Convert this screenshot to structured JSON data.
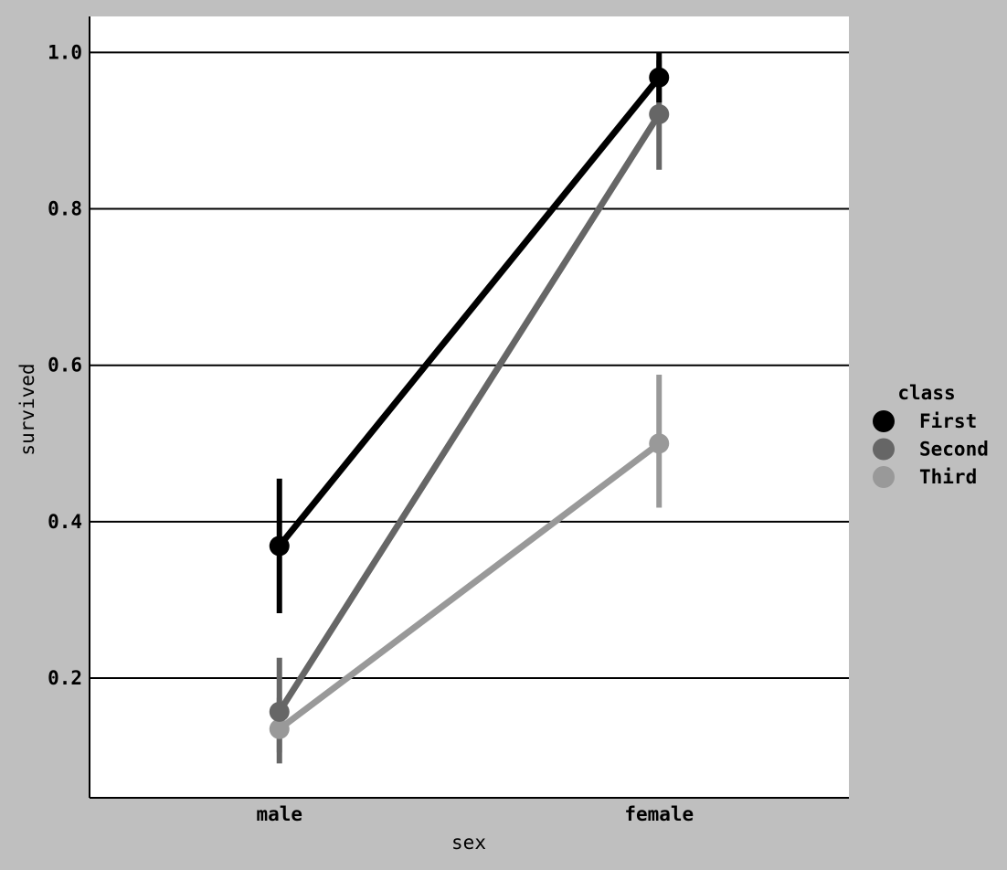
{
  "chart_data": {
    "type": "point",
    "categories": [
      "male",
      "female"
    ],
    "xlabel": "sex",
    "ylabel": "survived",
    "ylim": [
      0.047,
      1.046
    ],
    "yticks": [
      "0.2",
      "0.4",
      "0.6",
      "0.8",
      "1.0"
    ],
    "grid": "horizontal",
    "legend": {
      "title": "class",
      "placement": "right"
    },
    "series": [
      {
        "name": "First",
        "color": "#000000",
        "values": [
          0.369,
          0.968
        ],
        "ci": [
          [
            0.283,
            0.455
          ],
          [
            1.0,
            0.936
          ]
        ]
      },
      {
        "name": "Second",
        "color": "#666666",
        "values": [
          0.157,
          0.921
        ],
        "ci": [
          [
            0.091,
            0.226
          ],
          [
            0.85,
            0.99
          ]
        ]
      },
      {
        "name": "Third",
        "color": "#999999",
        "values": [
          0.135,
          0.5
        ],
        "ci": [
          [
            0.105,
            0.175
          ],
          [
            0.418,
            0.588
          ]
        ]
      }
    ]
  }
}
